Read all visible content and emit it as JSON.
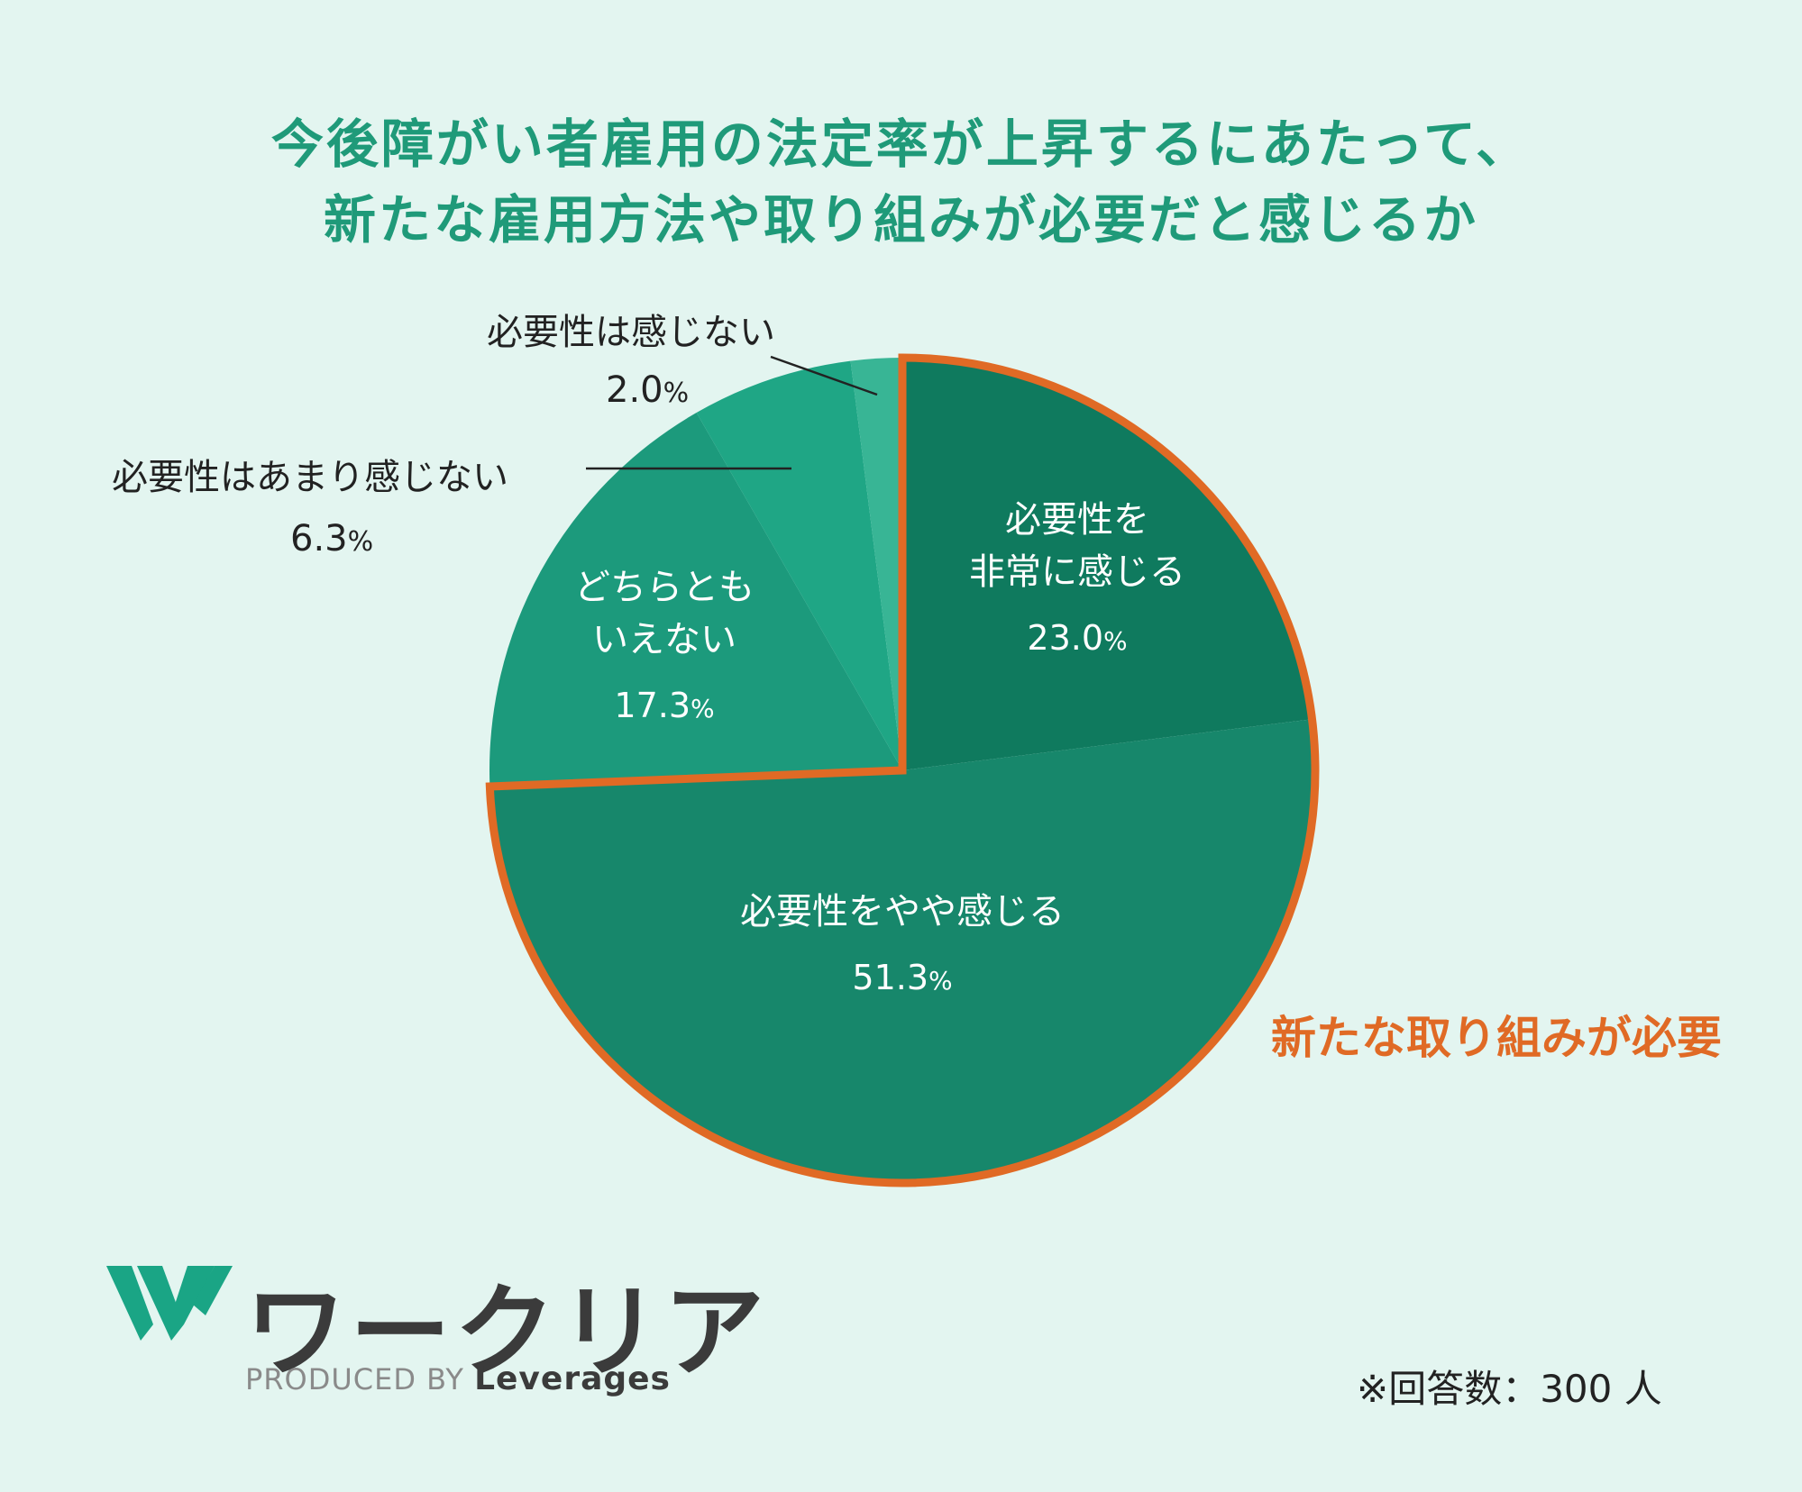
{
  "chart_data": {
    "type": "pie",
    "title": [
      "今後障がい者雇用の法定率が上昇するにあたって、",
      "新たな雇用方法や取り組みが必要だと感じるか"
    ],
    "unit": "%",
    "slices": [
      {
        "label": [
          "必要性を",
          "非常に感じる"
        ],
        "value": 23.0,
        "value_text": "23.0",
        "color": "#0f7a5e"
      },
      {
        "label": [
          "必要性をやや感じる"
        ],
        "value": 51.3,
        "value_text": "51.3",
        "color": "#17876b"
      },
      {
        "label": [
          "どちらとも",
          "いえない"
        ],
        "value": 17.3,
        "value_text": "17.3",
        "color": "#1c9a7c"
      },
      {
        "label": [
          "必要性はあまり感じない"
        ],
        "value": 6.3,
        "value_text": "6.3",
        "color": "#1fa685"
      },
      {
        "label": [
          "必要性は感じない"
        ],
        "value": 2.0,
        "value_text": "2.0",
        "color": "#38b595"
      }
    ],
    "highlight_label": "新たな取り組みが必要",
    "highlight_color": "#e06a25"
  },
  "footnote": "※回答数：300 人",
  "logo": {
    "name": "ワークリア",
    "produced_by": "PRODUCED BY",
    "company": "Leverages"
  }
}
